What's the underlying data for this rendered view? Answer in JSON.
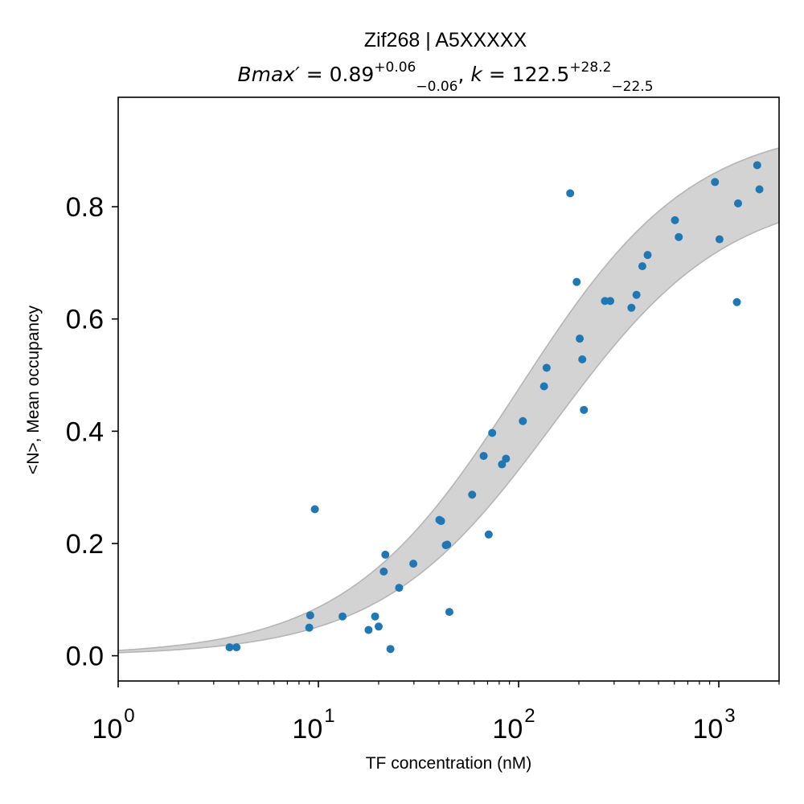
{
  "chart_data": {
    "type": "scatter",
    "title": "Zif268 | A5XXXXX",
    "subtitle": {
      "bmax_symbol": "Bmax′",
      "bmax_value": "0.89",
      "bmax_upper": "+0.06",
      "bmax_lower": "−0.06",
      "k_symbol": "k",
      "k_value": "122.5",
      "k_upper": "+28.2",
      "k_lower": "−22.5"
    },
    "xlabel": "TF concentration (nM)",
    "ylabel": "<N>, Mean occupancy",
    "x_scale": "log",
    "xlim": [
      1,
      2000
    ],
    "ylim": [
      -0.045,
      0.995
    ],
    "x_ticks": [
      {
        "base": "10",
        "exp": "0",
        "value": 1
      },
      {
        "base": "10",
        "exp": "1",
        "value": 10
      },
      {
        "base": "10",
        "exp": "2",
        "value": 100
      },
      {
        "base": "10",
        "exp": "3",
        "value": 1000
      }
    ],
    "y_ticks": [
      {
        "label": "0.0",
        "value": 0.0
      },
      {
        "label": "0.2",
        "value": 0.2
      },
      {
        "label": "0.4",
        "value": 0.4
      },
      {
        "label": "0.6",
        "value": 0.6
      },
      {
        "label": "0.8",
        "value": 0.8
      }
    ],
    "colors": {
      "points": "#1f77b4",
      "band_fill": "#d3d3d3",
      "band_edge": "#b5b5b5",
      "axes": "#000000"
    },
    "fit_band": {
      "bmax_low": 0.83,
      "bmax_high": 0.95,
      "k_low": 100.0,
      "k_high": 150.7
    },
    "points": [
      {
        "x": 3.6,
        "y": 0.015
      },
      {
        "x": 3.9,
        "y": 0.015
      },
      {
        "x": 9.0,
        "y": 0.05
      },
      {
        "x": 9.1,
        "y": 0.072
      },
      {
        "x": 9.6,
        "y": 0.261
      },
      {
        "x": 13.2,
        "y": 0.07
      },
      {
        "x": 17.8,
        "y": 0.046
      },
      {
        "x": 19.2,
        "y": 0.07
      },
      {
        "x": 20.0,
        "y": 0.052
      },
      {
        "x": 21.2,
        "y": 0.15
      },
      {
        "x": 21.6,
        "y": 0.18
      },
      {
        "x": 22.9,
        "y": 0.012
      },
      {
        "x": 25.3,
        "y": 0.121
      },
      {
        "x": 29.8,
        "y": 0.164
      },
      {
        "x": 40.2,
        "y": 0.242
      },
      {
        "x": 41.0,
        "y": 0.24
      },
      {
        "x": 43.3,
        "y": 0.197
      },
      {
        "x": 44.0,
        "y": 0.198
      },
      {
        "x": 45.1,
        "y": 0.078
      },
      {
        "x": 58.6,
        "y": 0.287
      },
      {
        "x": 66.9,
        "y": 0.356
      },
      {
        "x": 70.9,
        "y": 0.216
      },
      {
        "x": 73.8,
        "y": 0.397
      },
      {
        "x": 82.6,
        "y": 0.341
      },
      {
        "x": 86.5,
        "y": 0.351
      },
      {
        "x": 105.0,
        "y": 0.418
      },
      {
        "x": 134.0,
        "y": 0.48
      },
      {
        "x": 138.0,
        "y": 0.513
      },
      {
        "x": 181.0,
        "y": 0.824
      },
      {
        "x": 195.0,
        "y": 0.666
      },
      {
        "x": 202.0,
        "y": 0.565
      },
      {
        "x": 208.0,
        "y": 0.528
      },
      {
        "x": 212.0,
        "y": 0.438
      },
      {
        "x": 270.0,
        "y": 0.632
      },
      {
        "x": 287.0,
        "y": 0.632
      },
      {
        "x": 366.0,
        "y": 0.62
      },
      {
        "x": 388.0,
        "y": 0.643
      },
      {
        "x": 415.0,
        "y": 0.694
      },
      {
        "x": 441.0,
        "y": 0.714
      },
      {
        "x": 604.0,
        "y": 0.776
      },
      {
        "x": 631.0,
        "y": 0.746
      },
      {
        "x": 957.0,
        "y": 0.844
      },
      {
        "x": 1008.0,
        "y": 0.742
      },
      {
        "x": 1231.0,
        "y": 0.63
      },
      {
        "x": 1248.0,
        "y": 0.806
      },
      {
        "x": 1555.0,
        "y": 0.874
      },
      {
        "x": 1596.0,
        "y": 0.831
      }
    ]
  }
}
